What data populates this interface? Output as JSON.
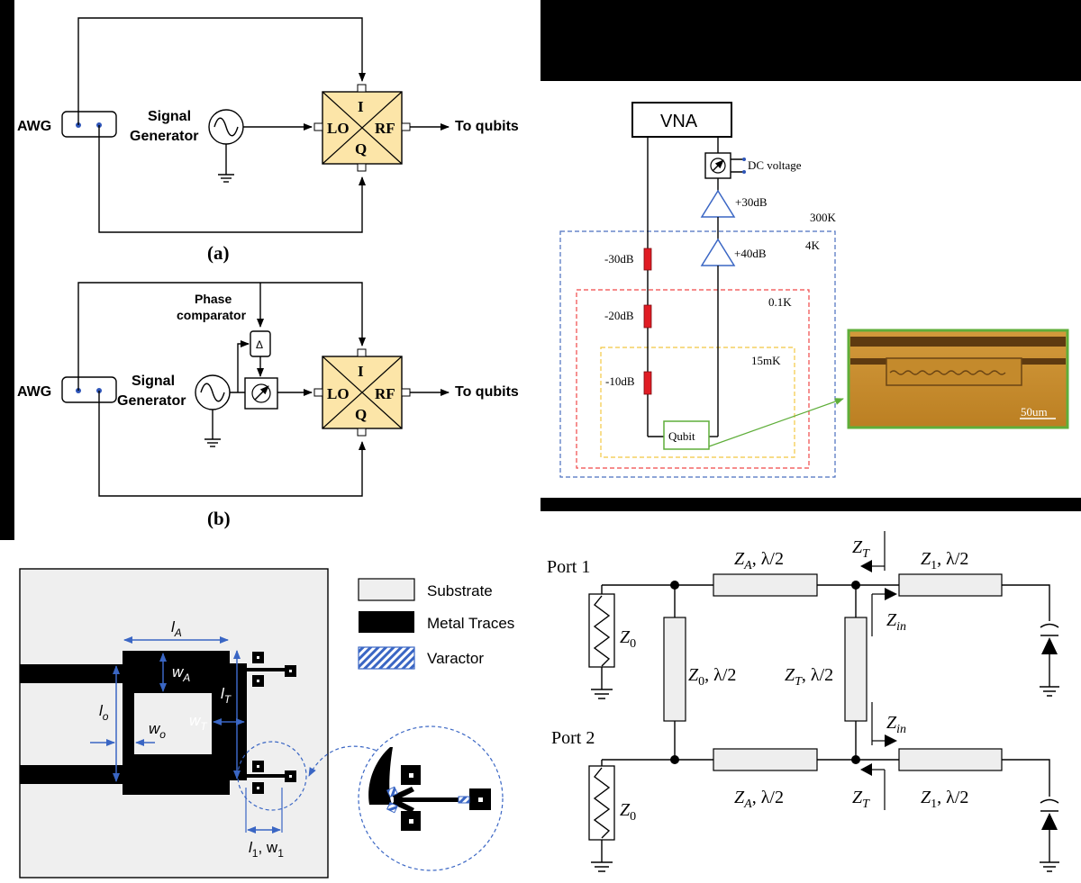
{
  "panel_a": {
    "awg": "AWG",
    "signal": "Signal",
    "generator": "Generator",
    "mixer": {
      "i": "I",
      "q": "Q",
      "lo": "LO",
      "rf": "RF"
    },
    "output": "To qubits",
    "caption": "(a)"
  },
  "panel_b": {
    "awg": "AWG",
    "signal": "Signal",
    "generator": "Generator",
    "phase": "Phase",
    "comparator": "comparator",
    "delta": "Δ",
    "mixer": {
      "i": "I",
      "q": "Q",
      "lo": "LO",
      "rf": "RF"
    },
    "output": "To qubits",
    "caption": "(b)"
  },
  "vna": {
    "title": "VNA",
    "dc_voltage": "DC voltage",
    "amp1": "+30dB",
    "amp2": "+40dB",
    "att1": "-30dB",
    "att2": "-20dB",
    "att3": "-10dB",
    "t300": "300K",
    "t4": "4K",
    "t01": "0.1K",
    "t15": "15mK",
    "qubit": "Qubit",
    "scale": "50um"
  },
  "layout": {
    "lA": "l",
    "lA_sub": "A",
    "wA": "w",
    "wA_sub": "A",
    "lT": "l",
    "lT_sub": "T",
    "wT": "w",
    "wT_sub": "T",
    "lo": "l",
    "lo_sub": "o",
    "wo": "w",
    "wo_sub": "o",
    "l1": "l",
    "l1_sub": "1",
    "w1_sep": ", w",
    "w1_sub": "1",
    "legend": [
      "Substrate",
      "Metal Traces",
      "Varactor"
    ]
  },
  "circuit": {
    "port1": "Port 1",
    "port2": "Port 2",
    "z": "Z",
    "s0": "0",
    "sA": "A",
    "sT": "T",
    "s1": "1",
    "sin": "in",
    "half": ", λ/2"
  },
  "colors": {
    "mixer_fill": "#fce5a8",
    "dot_blue": "#2e55b8",
    "attenuator": "#e01c24",
    "dash_blue": "#4a6fbf",
    "dash_red": "#f04848",
    "dash_yellow": "#f2c742",
    "qubit_green": "#5fae3a",
    "chip": "#c9902f",
    "substrate": "#efefef"
  }
}
